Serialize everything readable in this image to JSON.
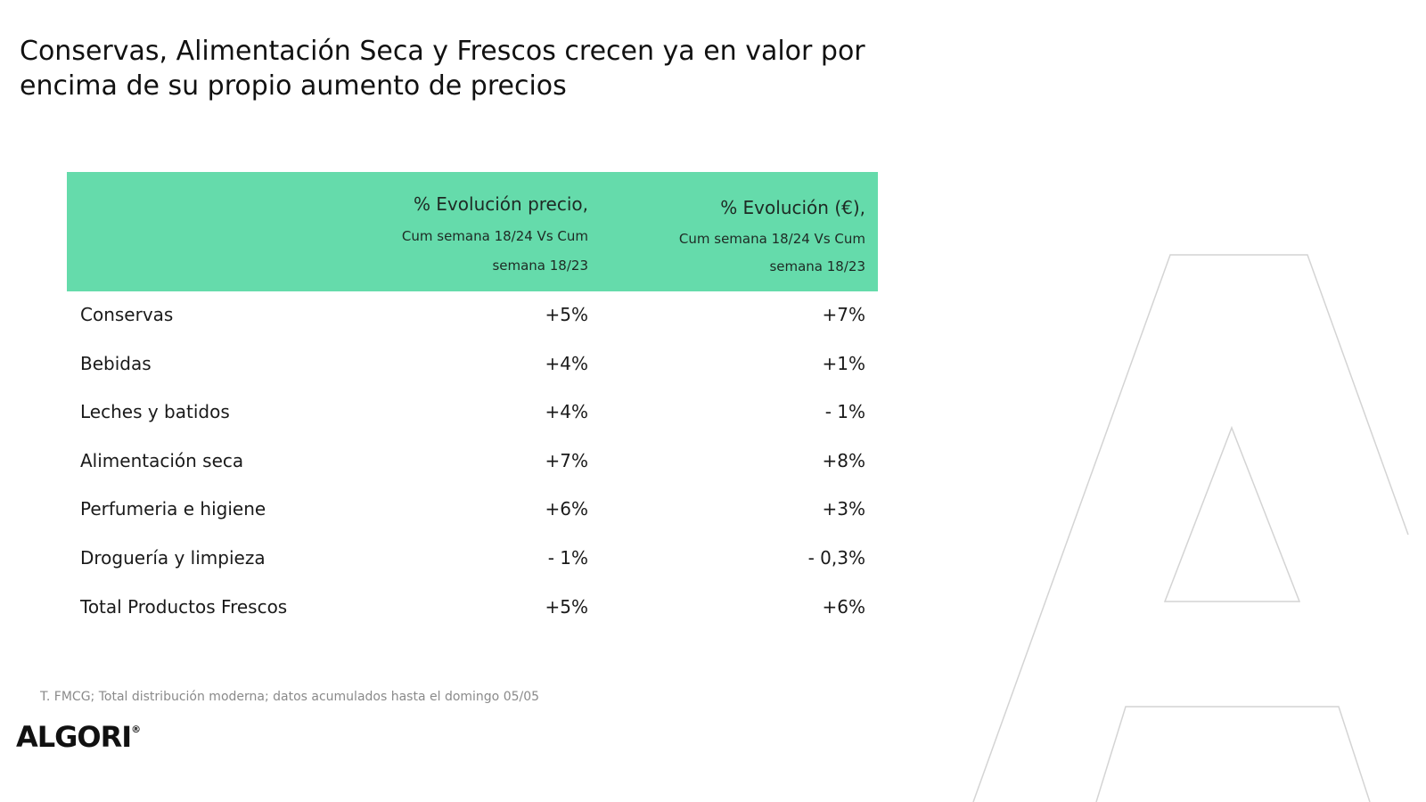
{
  "title": "Conservas, Alimentación Seca y Frescos crecen ya en valor por encima de su propio aumento de precios",
  "table": {
    "header_bg": "#65dbab",
    "columns": [
      {
        "title": "% Evolución precio,",
        "line2": "Cum semana 18/24 Vs Cum",
        "line3": "semana 18/23"
      },
      {
        "title": "% Evolución (€),",
        "line2": "Cum semana 18/24 Vs Cum",
        "line3": "semana 18/23"
      }
    ],
    "rows": [
      {
        "label": "Conservas",
        "precio": "+5%",
        "valor": "+7%"
      },
      {
        "label": "Bebidas",
        "precio": "+4%",
        "valor": "+1%"
      },
      {
        "label": "Leches y batidos",
        "precio": "+4%",
        "valor": "- 1%"
      },
      {
        "label": "Alimentación seca",
        "precio": "+7%",
        "valor": "+8%"
      },
      {
        "label": "Perfumeria e higiene",
        "precio": "+6%",
        "valor": "+3%"
      },
      {
        "label": "Droguería y limpieza",
        "precio": "- 1%",
        "valor": "- 0,3%"
      },
      {
        "label": "Total Productos Frescos",
        "precio": "+5%",
        "valor": "+6%"
      }
    ]
  },
  "footnote": "T. FMCG; Total distribución moderna; datos acumulados hasta el domingo 05/05",
  "logo": {
    "text": "ALGORI",
    "mark": "®"
  }
}
